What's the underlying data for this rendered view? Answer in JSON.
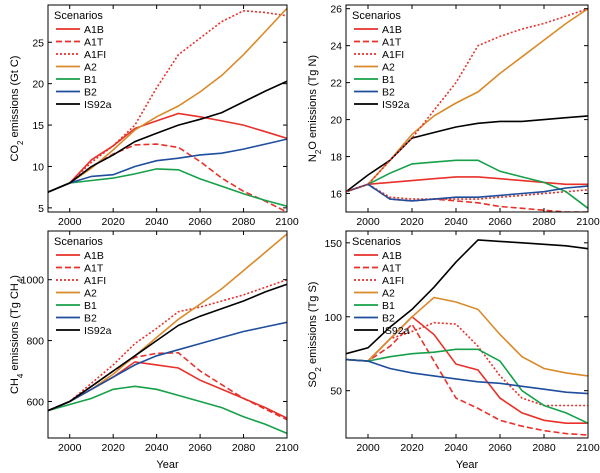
{
  "figure": {
    "colors": {
      "A1B": "#e8312a",
      "A1T": "#e8312a",
      "A1FI": "#e8312a",
      "A2": "#d98a2b",
      "B1": "#16a04a",
      "B2": "#1f4e9c",
      "IS92a": "#000000"
    }
  },
  "chart_data": [
    {
      "type": "line",
      "panel": "top-left",
      "ylabel": "CO2 emissions (Gt C)",
      "ylabel_main": "CO",
      "ylabel_sub": "2",
      "ylabel_rest": " emissions (Gt C)",
      "xlabel": "",
      "xlim": [
        1990,
        2100
      ],
      "ylim": [
        4.5,
        29.5
      ],
      "xticks": [
        2000,
        2020,
        2040,
        2060,
        2080,
        2100
      ],
      "yticks": [
        5,
        10,
        15,
        20,
        25
      ],
      "legend_title": "Scenarios",
      "legend_position": "top-left",
      "series": [
        {
          "name": "A1B",
          "style": "solid",
          "x": [
            1990,
            2000,
            2010,
            2020,
            2030,
            2040,
            2050,
            2060,
            2070,
            2080,
            2090,
            2100
          ],
          "values": [
            6.9,
            8.0,
            10.8,
            12.5,
            14.6,
            15.5,
            16.4,
            16.0,
            15.5,
            15.0,
            14.2,
            13.4
          ]
        },
        {
          "name": "A1T",
          "style": "dashed",
          "x": [
            1990,
            2000,
            2010,
            2020,
            2030,
            2040,
            2050,
            2060,
            2070,
            2080,
            2090,
            2100
          ],
          "values": [
            6.9,
            8.0,
            10.0,
            11.5,
            12.6,
            12.7,
            12.3,
            10.6,
            8.6,
            7.0,
            5.8,
            4.5
          ]
        },
        {
          "name": "A1FI",
          "style": "dotted",
          "x": [
            1990,
            2000,
            2010,
            2020,
            2030,
            2040,
            2050,
            2060,
            2070,
            2080,
            2090,
            2100
          ],
          "values": [
            6.9,
            8.0,
            10.5,
            12.5,
            15.0,
            19.5,
            23.5,
            25.5,
            27.5,
            28.8,
            28.6,
            28.2
          ]
        },
        {
          "name": "A2",
          "style": "solid",
          "x": [
            1990,
            2000,
            2010,
            2020,
            2030,
            2040,
            2050,
            2060,
            2070,
            2080,
            2090,
            2100
          ],
          "values": [
            6.9,
            8.0,
            9.8,
            12.0,
            14.4,
            16.0,
            17.3,
            19.0,
            21.0,
            23.5,
            26.3,
            29.1
          ]
        },
        {
          "name": "B1",
          "style": "solid",
          "x": [
            1990,
            2000,
            2010,
            2020,
            2030,
            2040,
            2050,
            2060,
            2070,
            2080,
            2090,
            2100
          ],
          "values": [
            6.9,
            8.0,
            8.3,
            8.6,
            9.1,
            9.7,
            9.6,
            8.5,
            7.6,
            6.7,
            5.9,
            5.2
          ]
        },
        {
          "name": "B2",
          "style": "solid",
          "x": [
            1990,
            2000,
            2010,
            2020,
            2030,
            2040,
            2050,
            2060,
            2070,
            2080,
            2090,
            2100
          ],
          "values": [
            6.9,
            8.0,
            8.8,
            9.0,
            10.0,
            10.7,
            11.0,
            11.4,
            11.6,
            12.1,
            12.7,
            13.3
          ]
        },
        {
          "name": "IS92a",
          "style": "solid",
          "x": [
            1990,
            2000,
            2010,
            2020,
            2030,
            2040,
            2050,
            2060,
            2070,
            2080,
            2090,
            2100
          ],
          "values": [
            6.9,
            8.0,
            10.0,
            11.4,
            13.0,
            14.0,
            15.0,
            15.7,
            16.5,
            17.8,
            19.1,
            20.3
          ]
        }
      ]
    },
    {
      "type": "line",
      "panel": "top-right",
      "ylabel": "N2O emissions (Tg N)",
      "ylabel_main": "N",
      "ylabel_sub": "2",
      "ylabel_rest": "O emissions (Tg N)",
      "xlabel": "",
      "xlim": [
        1990,
        2100
      ],
      "ylim": [
        15,
        26.2
      ],
      "xticks": [
        2000,
        2020,
        2040,
        2060,
        2080,
        2100
      ],
      "yticks": [
        16,
        18,
        20,
        22,
        24,
        26
      ],
      "legend_title": "Scenarios",
      "legend_position": "top-left",
      "series": [
        {
          "name": "A1B",
          "style": "solid",
          "x": [
            1990,
            2000,
            2010,
            2020,
            2030,
            2040,
            2050,
            2060,
            2070,
            2080,
            2090,
            2100
          ],
          "values": [
            16.1,
            16.5,
            16.6,
            16.7,
            16.8,
            16.9,
            16.9,
            16.8,
            16.7,
            16.6,
            16.5,
            16.5
          ]
        },
        {
          "name": "A1T",
          "style": "dashed",
          "x": [
            1990,
            2000,
            2010,
            2020,
            2030,
            2040,
            2050,
            2060,
            2070,
            2080,
            2090,
            2100
          ],
          "values": [
            16.1,
            16.5,
            15.7,
            15.6,
            15.7,
            15.6,
            15.5,
            15.3,
            15.2,
            15.1,
            15.0,
            15.0
          ]
        },
        {
          "name": "A1FI",
          "style": "dotted",
          "x": [
            1990,
            2000,
            2010,
            2020,
            2030,
            2040,
            2050,
            2060,
            2070,
            2080,
            2090,
            2100
          ],
          "values": [
            16.1,
            16.5,
            15.8,
            15.7,
            15.7,
            15.7,
            15.7,
            15.8,
            15.9,
            16.0,
            16.1,
            16.2
          ]
        },
        {
          "name": "A2",
          "style": "solid",
          "x": [
            1990,
            2000,
            2010,
            2020,
            2030,
            2040,
            2050,
            2060,
            2070,
            2080,
            2090,
            2100
          ],
          "values": [
            16.1,
            16.5,
            17.8,
            19.2,
            20.2,
            20.9,
            21.5,
            22.5,
            23.4,
            24.3,
            25.2,
            26.0
          ]
        },
        {
          "name": "B1",
          "style": "solid",
          "x": [
            1990,
            2000,
            2010,
            2020,
            2030,
            2040,
            2050,
            2060,
            2070,
            2080,
            2090,
            2100
          ],
          "values": [
            16.1,
            16.5,
            17.1,
            17.6,
            17.7,
            17.8,
            17.8,
            17.2,
            16.9,
            16.6,
            16.1,
            15.2
          ]
        },
        {
          "name": "B2",
          "style": "solid",
          "x": [
            1990,
            2000,
            2010,
            2020,
            2030,
            2040,
            2050,
            2060,
            2070,
            2080,
            2090,
            2100
          ],
          "values": [
            16.1,
            16.5,
            15.7,
            15.6,
            15.7,
            15.8,
            15.8,
            15.9,
            16.0,
            16.1,
            16.3,
            16.4
          ]
        },
        {
          "name": "IS92a",
          "style": "solid",
          "x": [
            1990,
            2000,
            2010,
            2020,
            2030,
            2040,
            2050,
            2060,
            2070,
            2080,
            2090,
            2100
          ],
          "values": [
            16.1,
            17.0,
            17.8,
            19.0,
            19.3,
            19.6,
            19.8,
            19.9,
            19.9,
            20.0,
            20.1,
            20.2
          ]
        },
        {
          "name": "A1FI-upper",
          "style": "dotted",
          "legend": false,
          "x": [
            1990,
            2000,
            2010,
            2020,
            2030,
            2040,
            2050,
            2060,
            2070,
            2080,
            2090,
            2100
          ],
          "values": [
            16.1,
            16.5,
            17.8,
            19.0,
            20.5,
            22.0,
            24.0,
            24.5,
            24.9,
            25.2,
            25.6,
            26.0
          ]
        }
      ]
    },
    {
      "type": "line",
      "panel": "bottom-left",
      "ylabel": "CH4 emissions (Tg CH4)",
      "ylabel_main": "CH",
      "ylabel_sub": "4",
      "ylabel_rest": " emissions (Tg CH",
      "ylabel_sub2": "4",
      "ylabel_end": ")",
      "xlabel": "Year",
      "xlim": [
        1990,
        2100
      ],
      "ylim": [
        480,
        1160
      ],
      "xticks": [
        2000,
        2020,
        2040,
        2060,
        2080,
        2100
      ],
      "yticks": [
        600,
        800,
        1000
      ],
      "legend_title": "Scenarios",
      "legend_position": "top-left",
      "series": [
        {
          "name": "A1B",
          "style": "solid",
          "x": [
            1990,
            2000,
            2010,
            2020,
            2030,
            2040,
            2050,
            2060,
            2070,
            2080,
            2090,
            2100
          ],
          "values": [
            570,
            600,
            640,
            680,
            730,
            720,
            710,
            670,
            640,
            610,
            580,
            545
          ]
        },
        {
          "name": "A1T",
          "style": "dashed",
          "x": [
            1990,
            2000,
            2010,
            2020,
            2030,
            2040,
            2050,
            2060,
            2070,
            2080,
            2090,
            2100
          ],
          "values": [
            570,
            600,
            650,
            700,
            745,
            758,
            760,
            700,
            655,
            610,
            575,
            540
          ]
        },
        {
          "name": "A1FI",
          "style": "dotted",
          "x": [
            1990,
            2000,
            2010,
            2020,
            2030,
            2040,
            2050,
            2060,
            2070,
            2080,
            2090,
            2100
          ],
          "values": [
            570,
            600,
            660,
            720,
            790,
            840,
            895,
            910,
            930,
            950,
            975,
            1000
          ]
        },
        {
          "name": "A2",
          "style": "solid",
          "x": [
            1990,
            2000,
            2010,
            2020,
            2030,
            2040,
            2050,
            2060,
            2070,
            2080,
            2090,
            2100
          ],
          "values": [
            570,
            600,
            640,
            690,
            750,
            810,
            870,
            920,
            970,
            1030,
            1090,
            1150
          ]
        },
        {
          "name": "B1",
          "style": "solid",
          "x": [
            1990,
            2000,
            2010,
            2020,
            2030,
            2040,
            2050,
            2060,
            2070,
            2080,
            2090,
            2100
          ],
          "values": [
            570,
            590,
            610,
            640,
            650,
            640,
            620,
            600,
            580,
            550,
            525,
            495
          ]
        },
        {
          "name": "B2",
          "style": "solid",
          "x": [
            1990,
            2000,
            2010,
            2020,
            2030,
            2040,
            2050,
            2060,
            2070,
            2080,
            2090,
            2100
          ],
          "values": [
            570,
            600,
            640,
            680,
            720,
            750,
            770,
            790,
            810,
            830,
            845,
            860
          ]
        },
        {
          "name": "IS92a",
          "style": "solid",
          "x": [
            1990,
            2000,
            2010,
            2020,
            2030,
            2040,
            2050,
            2060,
            2070,
            2080,
            2090,
            2100
          ],
          "values": [
            570,
            600,
            650,
            700,
            750,
            800,
            850,
            880,
            905,
            930,
            960,
            985
          ]
        }
      ]
    },
    {
      "type": "line",
      "panel": "bottom-right",
      "ylabel": "SO2 emissions (Tg S)",
      "ylabel_main": "SO",
      "ylabel_sub": "2",
      "ylabel_rest": " emissions (Tg S)",
      "xlabel": "Year",
      "xlim": [
        1990,
        2100
      ],
      "ylim": [
        18,
        158
      ],
      "xticks": [
        2000,
        2020,
        2040,
        2060,
        2080,
        2100
      ],
      "yticks": [
        50,
        100,
        150
      ],
      "legend_title": "Scenarios",
      "legend_position": "top-left",
      "series": [
        {
          "name": "A1B",
          "style": "solid",
          "x": [
            1990,
            2000,
            2010,
            2020,
            2030,
            2040,
            2050,
            2060,
            2070,
            2080,
            2090,
            2100
          ],
          "values": [
            71,
            70,
            85,
            100,
            88,
            68,
            64,
            45,
            35,
            30,
            28,
            28
          ]
        },
        {
          "name": "A1T",
          "style": "dashed",
          "x": [
            1990,
            2000,
            2010,
            2020,
            2030,
            2040,
            2050,
            2060,
            2070,
            2080,
            2090,
            2100
          ],
          "values": [
            71,
            70,
            80,
            95,
            70,
            45,
            38,
            30,
            26,
            23,
            21,
            20
          ]
        },
        {
          "name": "A1FI",
          "style": "dotted",
          "x": [
            1990,
            2000,
            2010,
            2020,
            2030,
            2040,
            2050,
            2060,
            2070,
            2080,
            2090,
            2100
          ],
          "values": [
            71,
            70,
            85,
            90,
            96,
            95,
            80,
            60,
            45,
            40,
            40,
            40
          ]
        },
        {
          "name": "A2",
          "style": "solid",
          "x": [
            1990,
            2000,
            2010,
            2020,
            2030,
            2040,
            2050,
            2060,
            2070,
            2080,
            2090,
            2100
          ],
          "values": [
            71,
            70,
            85,
            100,
            113,
            110,
            105,
            88,
            73,
            65,
            62,
            60
          ]
        },
        {
          "name": "B1",
          "style": "solid",
          "x": [
            1990,
            2000,
            2010,
            2020,
            2030,
            2040,
            2050,
            2060,
            2070,
            2080,
            2090,
            2100
          ],
          "values": [
            71,
            70,
            73,
            75,
            76,
            78,
            78,
            70,
            50,
            40,
            35,
            28
          ]
        },
        {
          "name": "B2",
          "style": "solid",
          "x": [
            1990,
            2000,
            2010,
            2020,
            2030,
            2040,
            2050,
            2060,
            2070,
            2080,
            2090,
            2100
          ],
          "values": [
            71,
            70,
            65,
            62,
            60,
            58,
            56,
            55,
            53,
            51,
            49,
            48
          ]
        },
        {
          "name": "IS92a",
          "style": "solid",
          "x": [
            1990,
            2000,
            2010,
            2020,
            2030,
            2040,
            2050,
            2060,
            2070,
            2080,
            2090,
            2100
          ],
          "values": [
            75,
            79,
            93,
            105,
            120,
            137,
            152,
            151,
            150,
            149,
            148,
            146
          ]
        }
      ]
    }
  ]
}
